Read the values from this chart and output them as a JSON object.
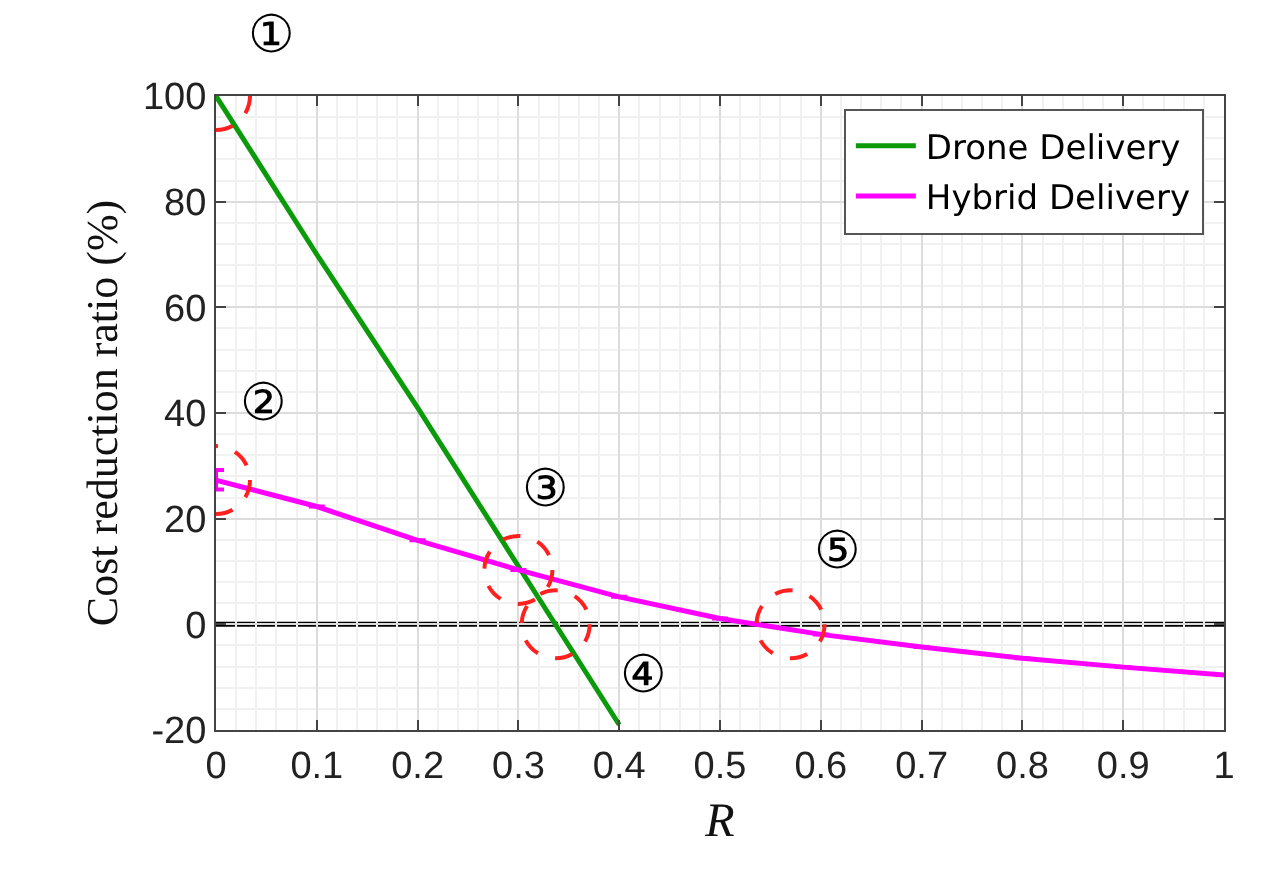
{
  "chart_data": {
    "type": "line",
    "xlabel": "R",
    "ylabel": "Cost reduction ratio (%)",
    "x": [
      0,
      0.1,
      0.2,
      0.3,
      0.4,
      0.5,
      0.6,
      0.7,
      0.8,
      0.9,
      1
    ],
    "series": [
      {
        "name": "Drone Delivery",
        "color": "#0a9a0a",
        "x": [
          0,
          0.1,
          0.2,
          0.3,
          0.4
        ],
        "values": [
          100,
          70,
          41,
          11,
          -19
        ]
      },
      {
        "name": "Hybrid Delivery",
        "color": "#ff00ff",
        "values": [
          27.3,
          22.3,
          15.9,
          10.3,
          5.2,
          1.1,
          -1.9,
          -4.3,
          -6.4,
          -8.1,
          -9.6
        ],
        "errors": [
          [
            25.5,
            29.2
          ],
          null,
          null,
          null,
          null,
          null,
          null,
          null,
          null,
          null,
          null
        ]
      }
    ],
    "xlim": [
      0,
      1
    ],
    "xticks": [
      0,
      0.1,
      0.2,
      0.3,
      0.4,
      0.5,
      0.6,
      0.7,
      0.8,
      0.9,
      1
    ],
    "ylim": [
      -20,
      100
    ],
    "yticks": [
      -20,
      0,
      20,
      40,
      60,
      80,
      100
    ],
    "ref_lines": [
      {
        "axis": "y",
        "value": 0,
        "color": "#000000"
      }
    ],
    "annotations": [
      {
        "text": "①",
        "x": 0,
        "y": 100
      },
      {
        "text": "②",
        "x": 0,
        "y": 27.3
      },
      {
        "text": "③",
        "x": 0.3,
        "y": 10.3
      },
      {
        "text": "④",
        "x": 0.337,
        "y": 0
      },
      {
        "text": "⑤",
        "x": 0.57,
        "y": 0
      }
    ],
    "grid": true,
    "legend": "top right",
    "marker": "none",
    "line_style": "solid"
  }
}
